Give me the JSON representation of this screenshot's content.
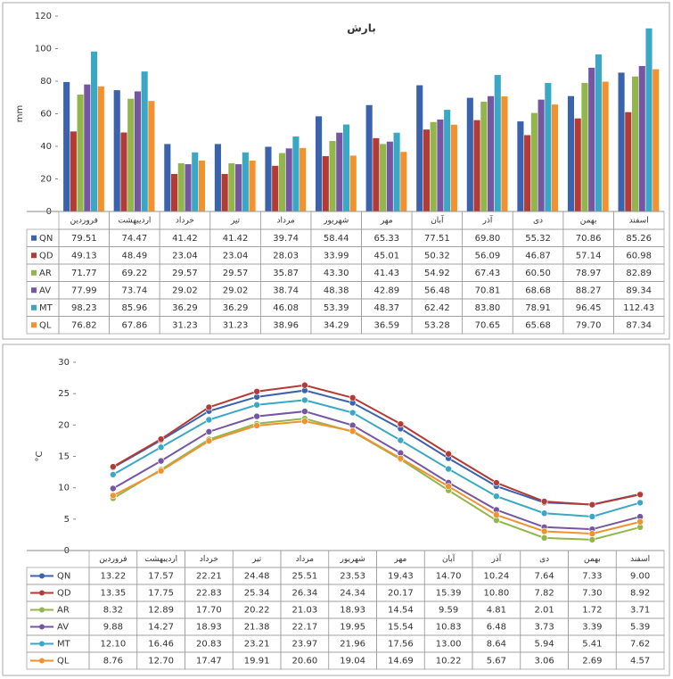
{
  "chart_data": [
    {
      "type": "bar",
      "title": "بارش",
      "ylabel": "mm",
      "categories": [
        "فروردین",
        "اردیبهشت",
        "خرداد",
        "تیر",
        "مرداد",
        "شهریور",
        "مهر",
        "آبان",
        "آذر",
        "دی",
        "بهمن",
        "اسفند"
      ],
      "ylim": [
        0,
        120
      ],
      "yticks": [
        0,
        20,
        40,
        60,
        80,
        100,
        120
      ],
      "grid": false,
      "series": [
        {
          "name": "QN",
          "color": "#3b62ad",
          "values": [
            79.51,
            74.47,
            41.42,
            41.42,
            39.74,
            58.44,
            65.33,
            77.51,
            69.8,
            55.32,
            70.86,
            85.26
          ],
          "value_labels": [
            "79.51",
            "74.47",
            "41.42",
            "41.42",
            "39.74",
            "58.44",
            "65.33",
            "77.51",
            "69.80",
            "55.32",
            "70.86",
            "85.26"
          ]
        },
        {
          "name": "QD",
          "color": "#b43a35",
          "values": [
            49.13,
            48.49,
            23.04,
            23.04,
            28.03,
            33.99,
            45.01,
            50.32,
            56.09,
            46.87,
            57.14,
            60.98
          ],
          "value_labels": [
            "49.13",
            "48.49",
            "23.04",
            "23.04",
            "28.03",
            "33.99",
            "45.01",
            "50.32",
            "56.09",
            "46.87",
            "57.14",
            "60.98"
          ]
        },
        {
          "name": "AR",
          "color": "#93b64c",
          "values": [
            71.77,
            69.22,
            29.57,
            29.57,
            35.87,
            43.3,
            41.43,
            54.92,
            67.43,
            60.5,
            78.97,
            82.89
          ],
          "value_labels": [
            "71.77",
            "69.22",
            "29.57",
            "29.57",
            "35.87",
            "43.30",
            "41.43",
            "54.92",
            "67.43",
            "60.50",
            "78.97",
            "82.89"
          ]
        },
        {
          "name": "AV",
          "color": "#7456a2",
          "values": [
            77.99,
            73.74,
            29.02,
            29.02,
            38.74,
            48.38,
            42.89,
            56.48,
            70.81,
            68.68,
            88.27,
            89.34
          ],
          "value_labels": [
            "77.99",
            "73.74",
            "29.02",
            "29.02",
            "38.74",
            "48.38",
            "42.89",
            "56.48",
            "70.81",
            "68.68",
            "88.27",
            "89.34"
          ]
        },
        {
          "name": "MT",
          "color": "#3aa7c4",
          "values": [
            98.23,
            85.96,
            36.29,
            36.29,
            46.08,
            53.39,
            48.37,
            62.42,
            83.8,
            78.91,
            96.45,
            112.43
          ],
          "value_labels": [
            "98.23",
            "85.96",
            "36.29",
            "36.29",
            "46.08",
            "53.39",
            "48.37",
            "62.42",
            "83.80",
            "78.91",
            "96.45",
            "112.43"
          ]
        },
        {
          "name": "QL",
          "color": "#f1922f",
          "values": [
            76.82,
            67.86,
            31.23,
            31.23,
            38.96,
            34.29,
            36.59,
            53.28,
            70.65,
            65.68,
            79.7,
            87.34
          ],
          "value_labels": [
            "76.82",
            "67.86",
            "31.23",
            "31.23",
            "38.96",
            "34.29",
            "36.59",
            "53.28",
            "70.65",
            "65.68",
            "79.70",
            "87.34"
          ]
        }
      ]
    },
    {
      "type": "line",
      "ylabel": "°C",
      "categories": [
        "فروردین",
        "اردیبهشت",
        "خرداد",
        "تیر",
        "مرداد",
        "شهریور",
        "مهر",
        "آبان",
        "آذر",
        "دی",
        "بهمن",
        "اسفند"
      ],
      "ylim": [
        0,
        30
      ],
      "yticks": [
        0,
        5,
        10,
        15,
        20,
        25,
        30
      ],
      "grid": false,
      "series": [
        {
          "name": "QN",
          "color": "#3b62ad",
          "values": [
            13.22,
            17.57,
            22.21,
            24.48,
            25.51,
            23.53,
            19.43,
            14.7,
            10.24,
            7.64,
            7.33,
            9.0
          ],
          "value_labels": [
            "13.22",
            "17.57",
            "22.21",
            "24.48",
            "25.51",
            "23.53",
            "19.43",
            "14.70",
            "10.24",
            "7.64",
            "7.33",
            "9.00"
          ]
        },
        {
          "name": "QD",
          "color": "#b43a35",
          "values": [
            13.35,
            17.75,
            22.83,
            25.34,
            26.34,
            24.34,
            20.17,
            15.39,
            10.8,
            7.82,
            7.3,
            8.92
          ],
          "value_labels": [
            "13.35",
            "17.75",
            "22.83",
            "25.34",
            "26.34",
            "24.34",
            "20.17",
            "15.39",
            "10.80",
            "7.82",
            "7.30",
            "8.92"
          ]
        },
        {
          "name": "AR",
          "color": "#93b64c",
          "values": [
            8.32,
            12.89,
            17.7,
            20.22,
            21.03,
            18.93,
            14.54,
            9.59,
            4.81,
            2.01,
            1.72,
            3.71
          ],
          "value_labels": [
            "8.32",
            "12.89",
            "17.70",
            "20.22",
            "21.03",
            "18.93",
            "14.54",
            "9.59",
            "4.81",
            "2.01",
            "1.72",
            "3.71"
          ]
        },
        {
          "name": "AV",
          "color": "#7456a2",
          "values": [
            9.88,
            14.27,
            18.93,
            21.38,
            22.17,
            19.95,
            15.54,
            10.83,
            6.48,
            3.73,
            3.39,
            5.39
          ],
          "value_labels": [
            "9.88",
            "14.27",
            "18.93",
            "21.38",
            "22.17",
            "19.95",
            "15.54",
            "10.83",
            "6.48",
            "3.73",
            "3.39",
            "5.39"
          ]
        },
        {
          "name": "MT",
          "color": "#3aa7c4",
          "values": [
            12.1,
            16.46,
            20.83,
            23.21,
            23.97,
            21.96,
            17.56,
            13.0,
            8.64,
            5.94,
            5.41,
            7.62
          ],
          "value_labels": [
            "12.10",
            "16.46",
            "20.83",
            "23.21",
            "23.97",
            "21.96",
            "17.56",
            "13.00",
            "8.64",
            "5.94",
            "5.41",
            "7.62"
          ]
        },
        {
          "name": "QL",
          "color": "#f1922f",
          "values": [
            8.76,
            12.7,
            17.47,
            19.91,
            20.6,
            19.04,
            14.69,
            10.22,
            5.67,
            3.06,
            2.69,
            4.57
          ],
          "value_labels": [
            "8.76",
            "12.70",
            "17.47",
            "19.91",
            "20.60",
            "19.04",
            "14.69",
            "10.22",
            "5.67",
            "3.06",
            "2.69",
            "4.57"
          ]
        }
      ]
    }
  ]
}
